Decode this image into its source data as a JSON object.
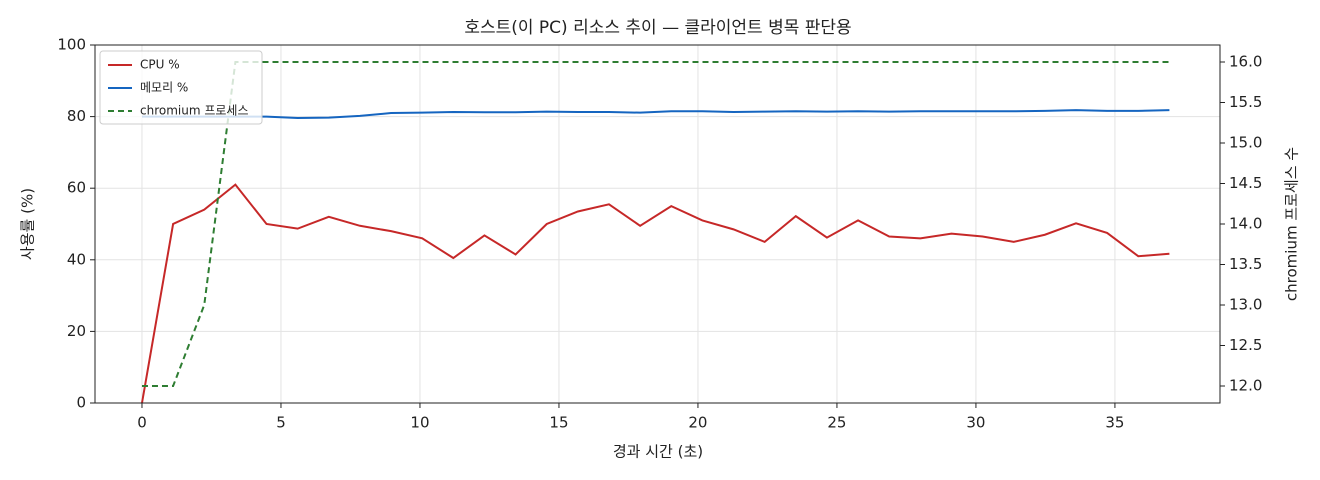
{
  "chart_data": {
    "type": "line",
    "title": "호스트(이 PC) 리소스 추이 — 클라이언트 병목 판단용",
    "xlabel": "경과 시간 (초)",
    "ylabel": "사용률 (%)",
    "y2label": "chromium 프로세스 수",
    "x": [
      0,
      1.12,
      2.24,
      3.36,
      4.48,
      5.6,
      6.72,
      7.84,
      8.96,
      10.08,
      11.2,
      12.32,
      13.44,
      14.56,
      15.68,
      16.8,
      17.92,
      19.04,
      20.16,
      21.28,
      22.4,
      23.52,
      24.64,
      25.76,
      26.88,
      28,
      29.12,
      30.24,
      31.36,
      32.48,
      33.6,
      34.72,
      35.84,
      36.96
    ],
    "series": [
      {
        "name": "CPU %",
        "color": "#c62828",
        "linestyle": "solid",
        "values": [
          0,
          50,
          54,
          61,
          50,
          48.7,
          52,
          49.5,
          48,
          46,
          40.5,
          46.8,
          41.5,
          50,
          53.5,
          55.5,
          49.5,
          55,
          51,
          48.5,
          45,
          52.2,
          46.2,
          51,
          46.5,
          46,
          47.3,
          46.5,
          45,
          47,
          50.2,
          47.5,
          41,
          41.7
        ]
      },
      {
        "name": "메모리 %",
        "color": "#1565c0",
        "linestyle": "solid",
        "values": [
          80,
          80,
          80,
          80,
          80,
          79.6,
          79.7,
          80.2,
          81,
          81.1,
          81.3,
          81.2,
          81.2,
          81.4,
          81.3,
          81.3,
          81.1,
          81.5,
          81.5,
          81.3,
          81.4,
          81.5,
          81.4,
          81.5,
          81.4,
          81.5,
          81.5,
          81.5,
          81.5,
          81.6,
          81.8,
          81.6,
          81.6,
          81.8
        ]
      },
      {
        "name": "chromium 프로세스",
        "color": "#2e7d32",
        "linestyle": "dashed",
        "axis": "y2",
        "values": [
          12,
          12,
          13,
          16,
          16,
          16,
          16,
          16,
          16,
          16,
          16,
          16,
          16,
          16,
          16,
          16,
          16,
          16,
          16,
          16,
          16,
          16,
          16,
          16,
          16,
          16,
          16,
          16,
          16,
          16,
          16,
          16,
          16,
          16
        ]
      }
    ],
    "xlim": [
      -1.69,
      38.78
    ],
    "xticks": [
      0,
      5,
      10,
      15,
      20,
      25,
      30,
      35
    ],
    "ylim": [
      0,
      100
    ],
    "yticks": [
      0,
      20,
      40,
      60,
      80,
      100
    ],
    "y2lim": [
      11.79,
      16.21
    ],
    "y2ticks": [
      {
        "value": 12,
        "label": "12.0"
      },
      {
        "value": 12.5,
        "label": "12.5"
      },
      {
        "value": 13,
        "label": "13.0"
      },
      {
        "value": 13.5,
        "label": "13.5"
      },
      {
        "value": 14,
        "label": "14.0"
      },
      {
        "value": 14.5,
        "label": "14.5"
      },
      {
        "value": 15,
        "label": "15.0"
      },
      {
        "value": 15.5,
        "label": "15.5"
      },
      {
        "value": 16,
        "label": "16.0"
      }
    ],
    "grid": true,
    "legend": "upper-left"
  }
}
